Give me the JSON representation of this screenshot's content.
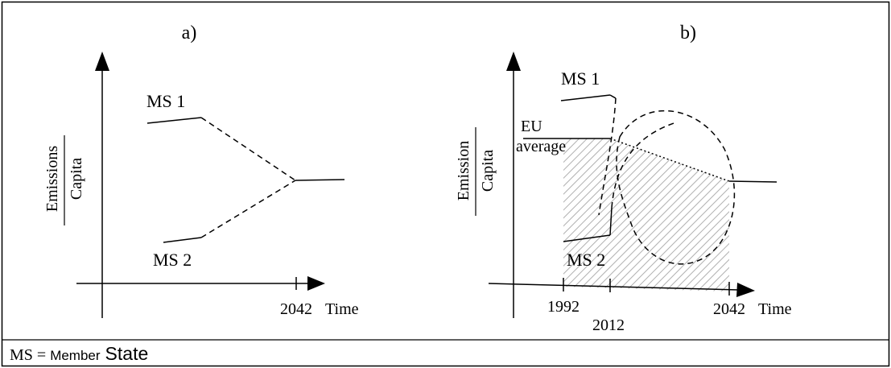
{
  "panel_a": {
    "title": "a)",
    "ylabel_top": "Emissions",
    "ylabel_bottom": "Capita",
    "ms1_label": "MS 1",
    "ms2_label": "MS 2",
    "xtick": "2042",
    "xlabel": "Time"
  },
  "panel_b": {
    "title": "b)",
    "ylabel_top": "Emission",
    "ylabel_bottom": "Capita",
    "ms1_label": "MS 1",
    "ms2_label": "MS 2",
    "eu_label_line1": "EU",
    "eu_label_line2": "average",
    "xtick_1": "1992",
    "xtick_2": "2012",
    "xtick_3": "2042",
    "xlabel": "Time"
  },
  "footer": {
    "prefix": "MS = ",
    "word1": "Member",
    "word2": "State"
  },
  "colors": {
    "ink": "#000000",
    "hatch": "#b0b0b0",
    "background": "#ffffff"
  }
}
